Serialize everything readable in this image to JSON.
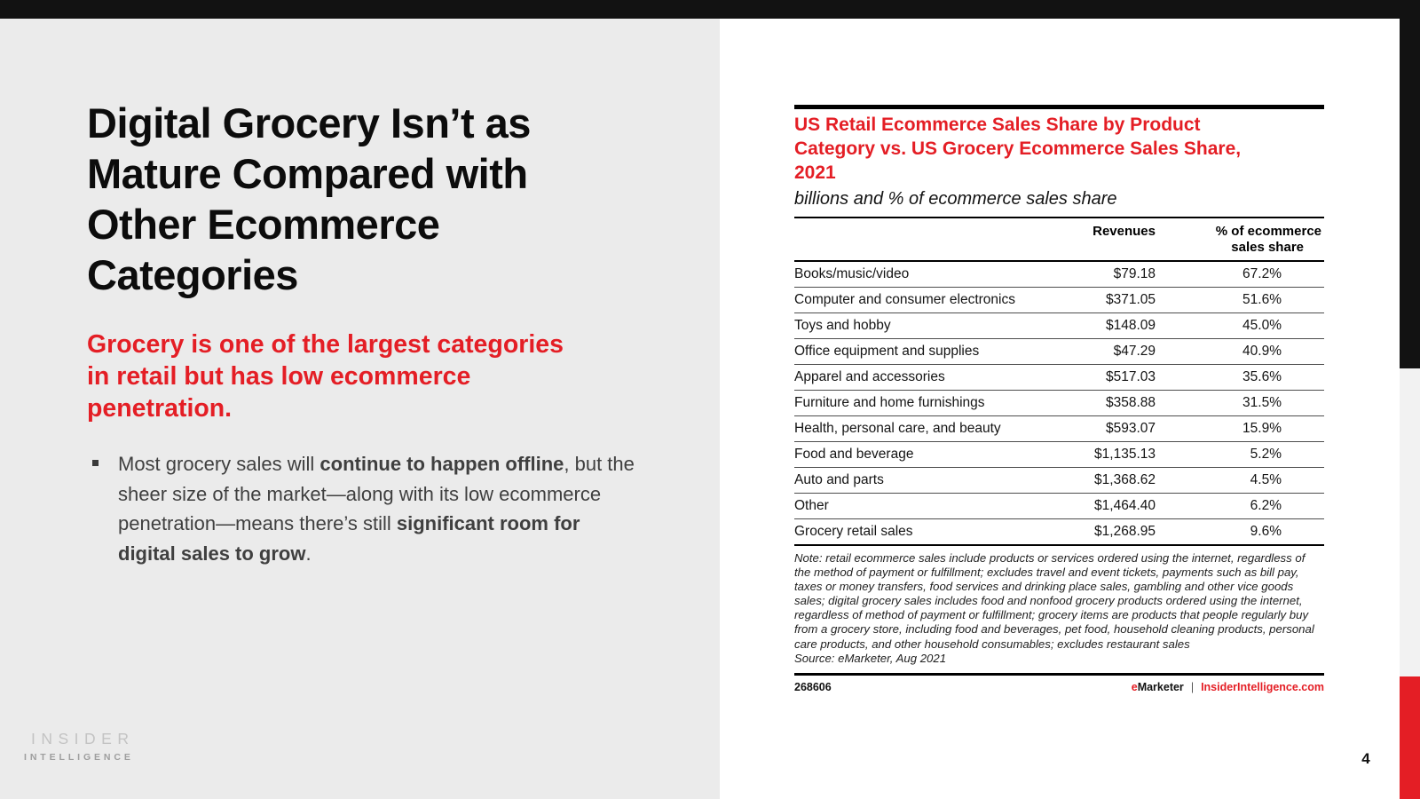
{
  "page": {
    "number": "4"
  },
  "colors": {
    "accent_red": "#e41e25",
    "top_bar_black": "#121212",
    "left_panel_gray": "#ebebeb",
    "right_edge_gray": "#f2f2f2"
  },
  "left": {
    "title_lines": [
      "Digital Grocery Isn’t as",
      "Mature Compared with",
      "Other Ecommerce",
      "Categories"
    ],
    "statement_lines": [
      "Grocery is one of the largest categories",
      "in retail but has low ecommerce",
      "penetration."
    ],
    "bullet": {
      "segments": [
        {
          "text": "Most grocery sales will ",
          "bold": false
        },
        {
          "text": "continue to happen offline",
          "bold": true
        },
        {
          "text": ", but the sheer size of the market—along with its low ecommerce penetration—means there’s still ",
          "bold": false
        },
        {
          "text": "significant room for digital sales to grow",
          "bold": true
        },
        {
          "text": ".",
          "bold": false
        }
      ]
    },
    "logo": {
      "line1": "INSIDER",
      "line2": "INTELLIGENCE"
    }
  },
  "chart": {
    "title_lines": [
      "US Retail Ecommerce Sales Share by Product",
      "Category vs. US Grocery Ecommerce Sales Share,",
      "2021"
    ],
    "subtitle": "billions and % of ecommerce sales share",
    "header": {
      "revenues": "Revenues",
      "share_line1": "% of ecommerce",
      "share_line2": "sales share"
    },
    "rows": [
      {
        "category": "Books/music/video",
        "revenue": "$79.18",
        "share": "67.2%"
      },
      {
        "category": "Computer and consumer electronics",
        "revenue": "$371.05",
        "share": "51.6%"
      },
      {
        "category": "Toys and hobby",
        "revenue": "$148.09",
        "share": "45.0%"
      },
      {
        "category": "Office equipment and supplies",
        "revenue": "$47.29",
        "share": "40.9%"
      },
      {
        "category": "Apparel and accessories",
        "revenue": "$517.03",
        "share": "35.6%"
      },
      {
        "category": "Furniture and home furnishings",
        "revenue": "$358.88",
        "share": "31.5%"
      },
      {
        "category": "Health, personal care, and beauty",
        "revenue": "$593.07",
        "share": "15.9%"
      },
      {
        "category": "Food and beverage",
        "revenue": "$1,135.13",
        "share": "5.2%"
      },
      {
        "category": "Auto and parts",
        "revenue": "$1,368.62",
        "share": "4.5%"
      },
      {
        "category": "Other",
        "revenue": "$1,464.40",
        "share": "6.2%"
      },
      {
        "category": "Grocery retail sales",
        "revenue": "$1,268.95",
        "share": "9.6%"
      }
    ],
    "note": "Note: retail ecommerce sales include products or services ordered using the internet, regardless of the method of payment or fulfillment; excludes travel and event tickets, payments such as bill pay, taxes or money transfers, food services and drinking place sales, gambling and other vice goods sales; digital grocery sales includes food and nonfood grocery products ordered using the internet, regardless of method of payment or fulfillment; grocery items are products that people regularly buy from a grocery store, including food and beverages, pet food, household cleaning products, personal care products, and other household consumables; excludes restaurant sales",
    "source": "Source: eMarketer, Aug 2021",
    "footer": {
      "chart_id": "268606",
      "brand_e": "e",
      "brand_rest": "Marketer",
      "separator": "|",
      "site": "InsiderIntelligence.com"
    }
  },
  "chart_data": {
    "type": "table",
    "title": "US Retail Ecommerce Sales Share by Product Category vs. US Grocery Ecommerce Sales Share, 2021",
    "subtitle": "billions and % of ecommerce sales share",
    "columns": [
      "Revenues",
      "% of ecommerce sales share"
    ],
    "categories": [
      "Books/music/video",
      "Computer and consumer electronics",
      "Toys and hobby",
      "Office equipment and supplies",
      "Apparel and accessories",
      "Furniture and home furnishings",
      "Health, personal care, and beauty",
      "Food and beverage",
      "Auto and parts",
      "Other",
      "Grocery retail sales"
    ],
    "revenues_billions": [
      79.18,
      371.05,
      148.09,
      47.29,
      517.03,
      358.88,
      593.07,
      1135.13,
      1368.62,
      1464.4,
      1268.95
    ],
    "ecommerce_sales_share_pct": [
      67.2,
      51.6,
      45.0,
      40.9,
      35.6,
      31.5,
      15.9,
      5.2,
      4.5,
      6.2,
      9.6
    ],
    "source": "eMarketer, Aug 2021"
  }
}
